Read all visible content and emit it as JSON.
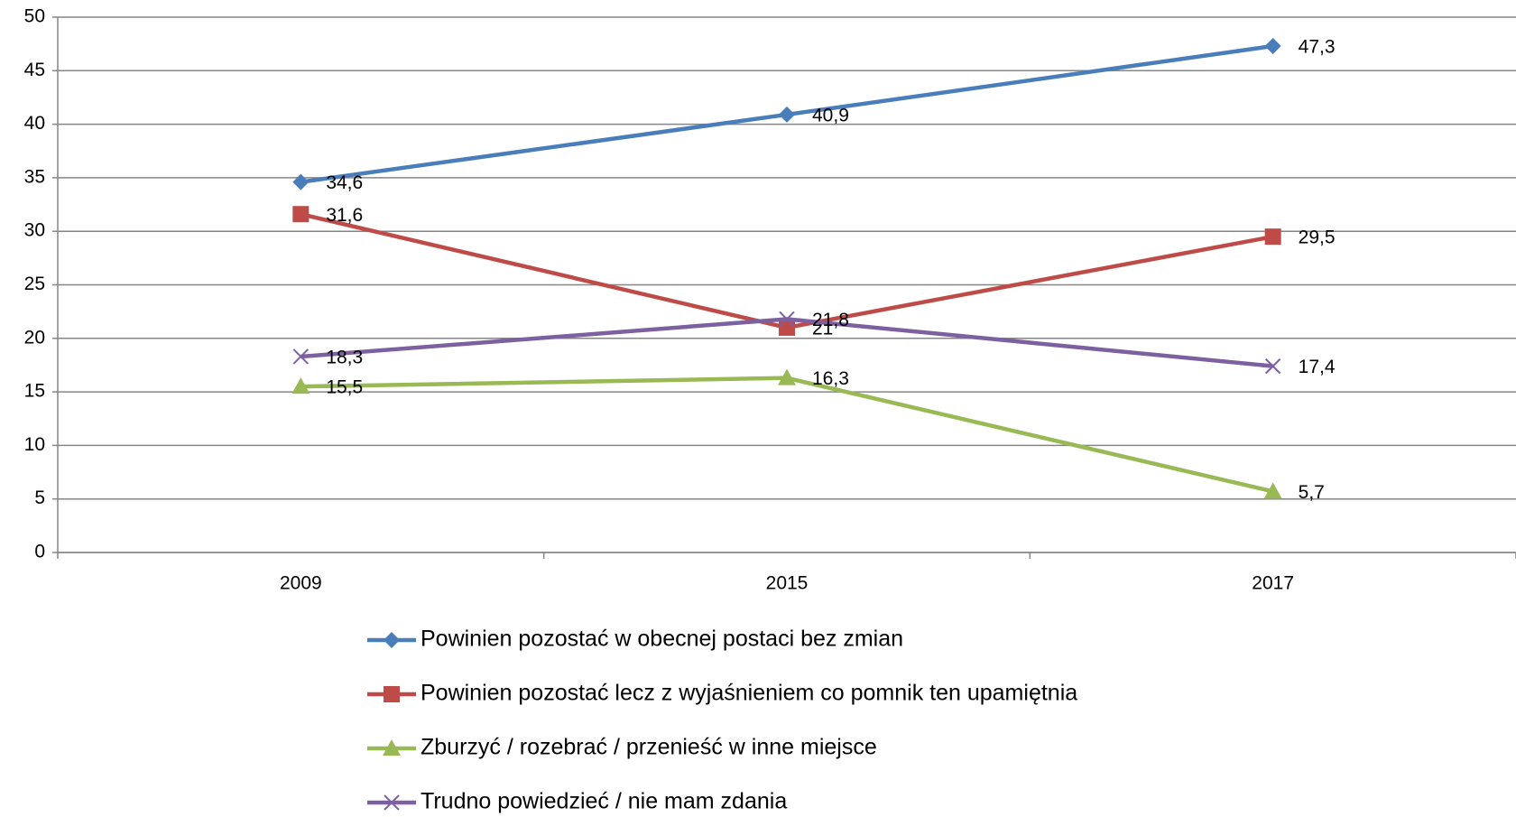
{
  "chart_data": {
    "type": "line",
    "categories": [
      "2009",
      "2015",
      "2017"
    ],
    "series": [
      {
        "name": "Powinien pozostać w obecnej postaci bez zmian",
        "color": "#4a7ebb",
        "marker": "diamond",
        "values": [
          34.6,
          40.9,
          47.3
        ],
        "value_labels": [
          "34,6",
          "40,9",
          "47,3"
        ]
      },
      {
        "name": "Powinien pozostać lecz z wyjaśnieniem co pomnik ten upamiętnia",
        "color": "#be4b48",
        "marker": "square",
        "values": [
          31.6,
          21,
          29.5
        ],
        "value_labels": [
          "31,6",
          "21",
          "29,5"
        ]
      },
      {
        "name": "Zburzyć / rozebrać / przenieść w inne miejsce",
        "color": "#98b954",
        "marker": "triangle",
        "values": [
          15.5,
          16.3,
          5.7
        ],
        "value_labels": [
          "15,5",
          "16,3",
          "5,7"
        ]
      },
      {
        "name": "Trudno powiedzieć / nie mam zdania",
        "color": "#7d60a0",
        "marker": "x",
        "values": [
          18.3,
          21.8,
          17.4
        ],
        "value_labels": [
          "18,3",
          "21,8",
          "17,4"
        ]
      }
    ],
    "ylim": [
      0,
      50
    ],
    "yticks": [
      0,
      5,
      10,
      15,
      20,
      25,
      30,
      35,
      40,
      45,
      50
    ],
    "grid": true,
    "legend": "bottom"
  }
}
